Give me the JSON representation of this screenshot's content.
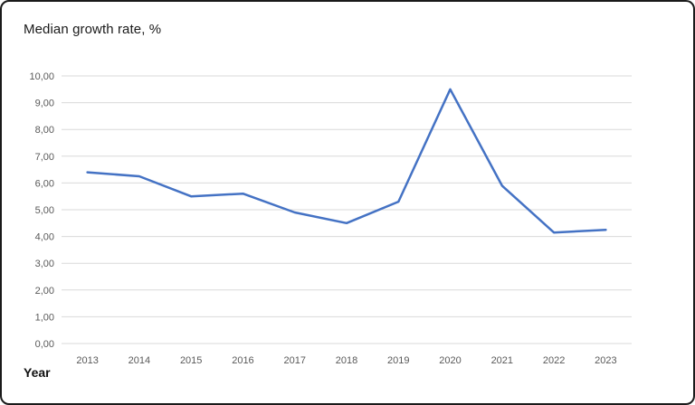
{
  "title": "Median growth rate, %",
  "x_axis_title": "Year",
  "chart_data": {
    "type": "line",
    "title": "Median growth rate, %",
    "xlabel": "Year",
    "ylabel": "Median growth rate, %",
    "categories": [
      "2013",
      "2014",
      "2015",
      "2016",
      "2017",
      "2018",
      "2019",
      "2020",
      "2021",
      "2022",
      "2023"
    ],
    "series": [
      {
        "name": "Median growth rate, %",
        "values": [
          6.4,
          6.25,
          5.5,
          5.6,
          4.9,
          4.5,
          5.3,
          9.5,
          5.9,
          4.15,
          4.25
        ]
      }
    ],
    "ylim": [
      0,
      10
    ],
    "ytick_step": 1,
    "ytick_labels": [
      "0,00",
      "1,00",
      "2,00",
      "3,00",
      "4,00",
      "5,00",
      "6,00",
      "7,00",
      "8,00",
      "9,00",
      "10,00"
    ],
    "grid": true,
    "legend": false,
    "colors": {
      "line": "#4472C4",
      "gridline": "#D9D9D9",
      "tick_label": "#595959",
      "title": "#1A1A1A",
      "background": "#FFFFFF",
      "frame_border": "#1A1A1A"
    }
  }
}
